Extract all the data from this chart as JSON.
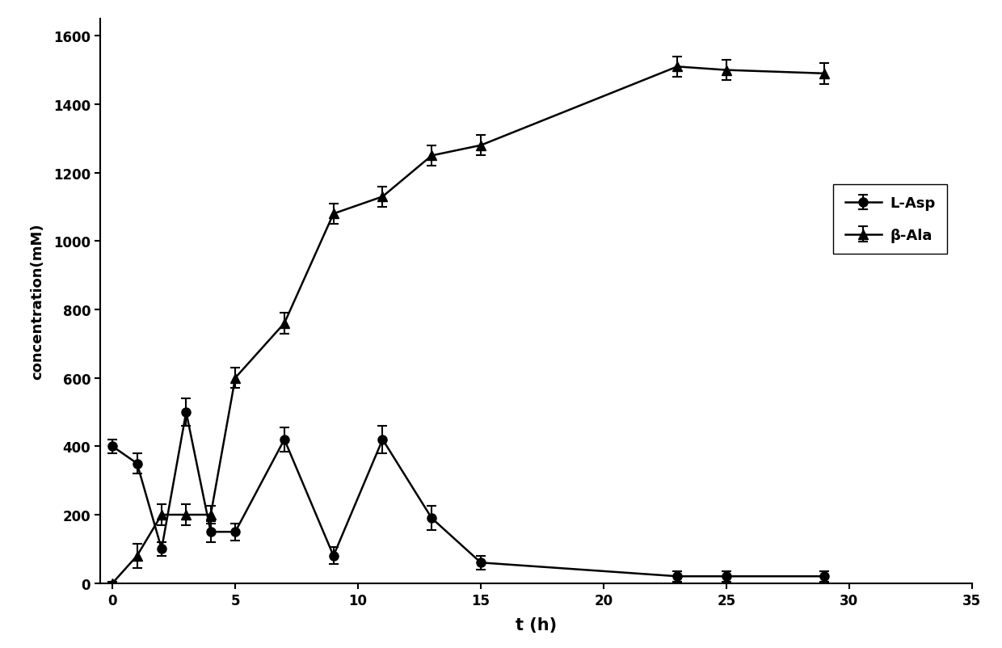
{
  "title": "",
  "xlabel": "t (h)",
  "ylabel": "concentration(mM)",
  "xlim": [
    -0.5,
    35
  ],
  "ylim": [
    0,
    1650
  ],
  "xticks": [
    0,
    5,
    10,
    15,
    20,
    25,
    30,
    35
  ],
  "yticks": [
    0,
    200,
    400,
    600,
    800,
    1000,
    1200,
    1400,
    1600
  ],
  "line_color": "#000000",
  "background_color": "#ffffff",
  "L_Asp_x": [
    0,
    1,
    2,
    3,
    4,
    5,
    7,
    9,
    11,
    13,
    15,
    23,
    25,
    29
  ],
  "L_Asp_y": [
    400,
    350,
    100,
    500,
    150,
    150,
    420,
    80,
    420,
    190,
    60,
    20,
    20,
    20
  ],
  "L_Asp_yerr": [
    20,
    30,
    20,
    40,
    30,
    25,
    35,
    25,
    40,
    35,
    20,
    15,
    15,
    15
  ],
  "beta_Ala_x": [
    0,
    1,
    2,
    3,
    4,
    5,
    7,
    9,
    11,
    13,
    15,
    23,
    25,
    29
  ],
  "beta_Ala_y": [
    0,
    80,
    200,
    200,
    200,
    600,
    760,
    1080,
    1130,
    1250,
    1280,
    1510,
    1500,
    1490
  ],
  "beta_Ala_yerr": [
    5,
    35,
    30,
    30,
    25,
    30,
    30,
    30,
    30,
    30,
    30,
    30,
    30,
    30
  ],
  "legend_labels": [
    "L-Asp",
    "β-Ala"
  ],
  "legend_loc": "upper right"
}
